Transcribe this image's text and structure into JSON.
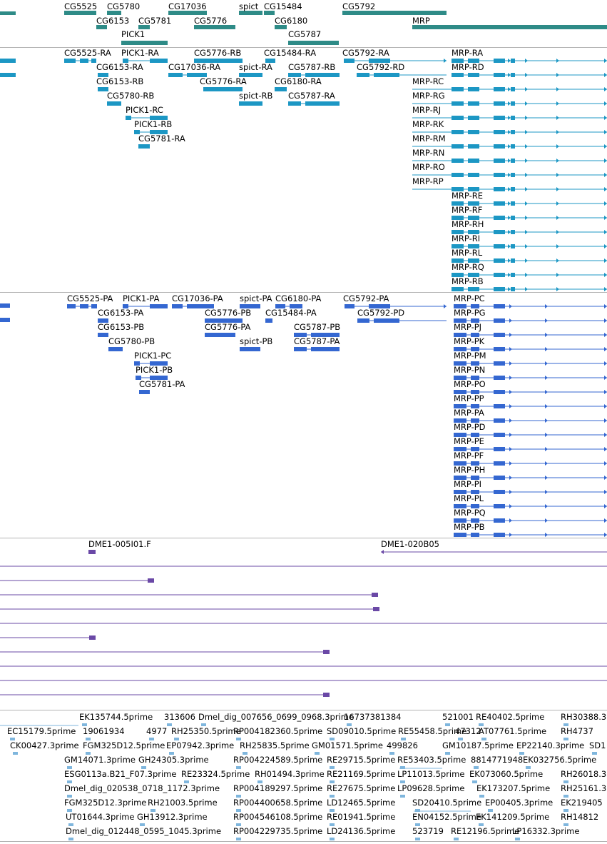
{
  "colors": {
    "gene": "#2e8b87",
    "transcript_rna": "#1c97c4",
    "transcript_protein": "#3467d1",
    "clone": "#6a48a6",
    "est": "#7fb6dd",
    "separator": "#b4b4b4"
  },
  "tracks": {
    "genes": {
      "items": [
        {
          "label": "CG5525",
          "strand": "-"
        },
        {
          "label": "CG5780",
          "strand": "+"
        },
        {
          "label": "CG17036",
          "strand": "+"
        },
        {
          "label": "spict",
          "strand": "+"
        },
        {
          "label": "CG15484",
          "strand": "+"
        },
        {
          "label": "CG5792",
          "strand": "+"
        },
        {
          "label": "CG6153",
          "strand": "+"
        },
        {
          "label": "CG5781",
          "strand": "-"
        },
        {
          "label": "CG5776",
          "strand": "+"
        },
        {
          "label": "CG6180",
          "strand": "+"
        },
        {
          "label": "MRP",
          "strand": "+"
        },
        {
          "label": "PICK1",
          "strand": "+"
        },
        {
          "label": "CG5787",
          "strand": "-"
        }
      ]
    },
    "rna": {
      "items": [
        {
          "label": "CG5525-RA"
        },
        {
          "label": "PICK1-RA"
        },
        {
          "label": "CG5776-RB"
        },
        {
          "label": "CG15484-RA"
        },
        {
          "label": "CG5792-RA"
        },
        {
          "label": "MRP-RA"
        },
        {
          "label": "CG6153-RA"
        },
        {
          "label": "CG17036-RA"
        },
        {
          "label": "spict-RA"
        },
        {
          "label": "CG5787-RB"
        },
        {
          "label": "CG5792-RD"
        },
        {
          "label": "MRP-RD"
        },
        {
          "label": "CG6153-RB"
        },
        {
          "label": "CG5776-RA"
        },
        {
          "label": "CG6180-RA"
        },
        {
          "label": "MRP-RC"
        },
        {
          "label": "CG5780-RB"
        },
        {
          "label": "spict-RB"
        },
        {
          "label": "CG5787-RA"
        },
        {
          "label": "MRP-RG"
        },
        {
          "label": "PICK1-RC"
        },
        {
          "label": "MRP-RJ"
        },
        {
          "label": "PICK1-RB"
        },
        {
          "label": "MRP-RK"
        },
        {
          "label": "CG5781-RA"
        },
        {
          "label": "MRP-RM"
        },
        {
          "label": "MRP-RN"
        },
        {
          "label": "MRP-RO"
        },
        {
          "label": "MRP-RP"
        },
        {
          "label": "MRP-RE"
        },
        {
          "label": "MRP-RF"
        },
        {
          "label": "MRP-RH"
        },
        {
          "label": "MRP-RI"
        },
        {
          "label": "MRP-RL"
        },
        {
          "label": "MRP-RQ"
        },
        {
          "label": "MRP-RB"
        }
      ]
    },
    "protein": {
      "items": [
        {
          "label": "CG5525-PA"
        },
        {
          "label": "PICK1-PA"
        },
        {
          "label": "CG17036-PA"
        },
        {
          "label": "spict-PA"
        },
        {
          "label": "CG6180-PA"
        },
        {
          "label": "CG5792-PA"
        },
        {
          "label": "MRP-PC"
        },
        {
          "label": "CG6153-PA"
        },
        {
          "label": "CG5776-PB"
        },
        {
          "label": "CG15484-PA"
        },
        {
          "label": "CG5792-PD"
        },
        {
          "label": "MRP-PG"
        },
        {
          "label": "CG6153-PB"
        },
        {
          "label": "CG5776-PA"
        },
        {
          "label": "CG5787-PB"
        },
        {
          "label": "MRP-PJ"
        },
        {
          "label": "CG5780-PB"
        },
        {
          "label": "spict-PB"
        },
        {
          "label": "CG5787-PA"
        },
        {
          "label": "MRP-PK"
        },
        {
          "label": "PICK1-PC"
        },
        {
          "label": "MRP-PM"
        },
        {
          "label": "PICK1-PB"
        },
        {
          "label": "MRP-PN"
        },
        {
          "label": "CG5781-PA"
        },
        {
          "label": "MRP-PO"
        },
        {
          "label": "MRP-PP"
        },
        {
          "label": "MRP-PA"
        },
        {
          "label": "MRP-PD"
        },
        {
          "label": "MRP-PE"
        },
        {
          "label": "MRP-PF"
        },
        {
          "label": "MRP-PH"
        },
        {
          "label": "MRP-PI"
        },
        {
          "label": "MRP-PL"
        },
        {
          "label": "MRP-PQ"
        },
        {
          "label": "MRP-PB"
        }
      ]
    },
    "clones": {
      "items": [
        {
          "label": "DME1-005I01.F"
        },
        {
          "label": "DME1-020B05"
        }
      ]
    },
    "ests": {
      "items": [
        {
          "label": "EK135744.5prime"
        },
        {
          "label": "313606"
        },
        {
          "label": "Dmel_dig_007656_0699_0968.3prime"
        },
        {
          "label": "16737381384"
        },
        {
          "label": "521001"
        },
        {
          "label": "RE40402.5prime"
        },
        {
          "label": "RH30388.3"
        },
        {
          "label": "EC15179.5prime"
        },
        {
          "label": "19061934"
        },
        {
          "label": "4977"
        },
        {
          "label": "RH25350.5prime"
        },
        {
          "label": "RP004182360.5prime"
        },
        {
          "label": "SD09010.5prime"
        },
        {
          "label": "RE55458.5prime"
        },
        {
          "label": "47312"
        },
        {
          "label": "AT07761.5prime"
        },
        {
          "label": "RH4737"
        },
        {
          "label": "CK00427.3prime"
        },
        {
          "label": "FGM325D12.5prime"
        },
        {
          "label": "EP07942.3prime"
        },
        {
          "label": "RH25835.5prime"
        },
        {
          "label": "GM01571.5prime"
        },
        {
          "label": "499826"
        },
        {
          "label": "GM10187.5prime"
        },
        {
          "label": "EP22140.3prime"
        },
        {
          "label": "SD1"
        },
        {
          "label": "GM14071.3prime"
        },
        {
          "label": "GH24305.3prime"
        },
        {
          "label": "RP004224589.5prime"
        },
        {
          "label": "RE29715.5prime"
        },
        {
          "label": "RE53403.5prime"
        },
        {
          "label": "8814771948"
        },
        {
          "label": "EK032756.5prime"
        },
        {
          "label": "ESG0113a.B21_F07.3prime"
        },
        {
          "label": "RE23324.5prime"
        },
        {
          "label": "RH01494.3prime"
        },
        {
          "label": "RE21169.5prime"
        },
        {
          "label": "LP11013.5prime"
        },
        {
          "label": "EK073060.5prime"
        },
        {
          "label": "RH26018.3"
        },
        {
          "label": "Dmel_dig_020538_0718_1172.3prime"
        },
        {
          "label": "RP004189297.5prime"
        },
        {
          "label": "RE27675.5prime"
        },
        {
          "label": "LP09628.5prime"
        },
        {
          "label": "EK173207.5prime"
        },
        {
          "label": "RH25161.3"
        },
        {
          "label": "FGM325D12.3prime"
        },
        {
          "label": "RH21003.5prime"
        },
        {
          "label": "RP004400658.5prime"
        },
        {
          "label": "LD12465.5prime"
        },
        {
          "label": "SD20410.5prime"
        },
        {
          "label": "EP00405.3prime"
        },
        {
          "label": "EK219405"
        },
        {
          "label": "UT01644.3prime"
        },
        {
          "label": "GH13912.3prime"
        },
        {
          "label": "RP004546108.5prime"
        },
        {
          "label": "RE01941.5prime"
        },
        {
          "label": "EN04152.5prime"
        },
        {
          "label": "EK141209.5prime"
        },
        {
          "label": "RH14812"
        },
        {
          "label": "Dmel_dig_012448_0595_1045.3prime"
        },
        {
          "label": "RP004229735.5prime"
        },
        {
          "label": "LD24136.5prime"
        },
        {
          "label": "523719"
        },
        {
          "label": "RE12196.5prime"
        },
        {
          "label": "LP16332.3prime"
        }
      ]
    }
  }
}
